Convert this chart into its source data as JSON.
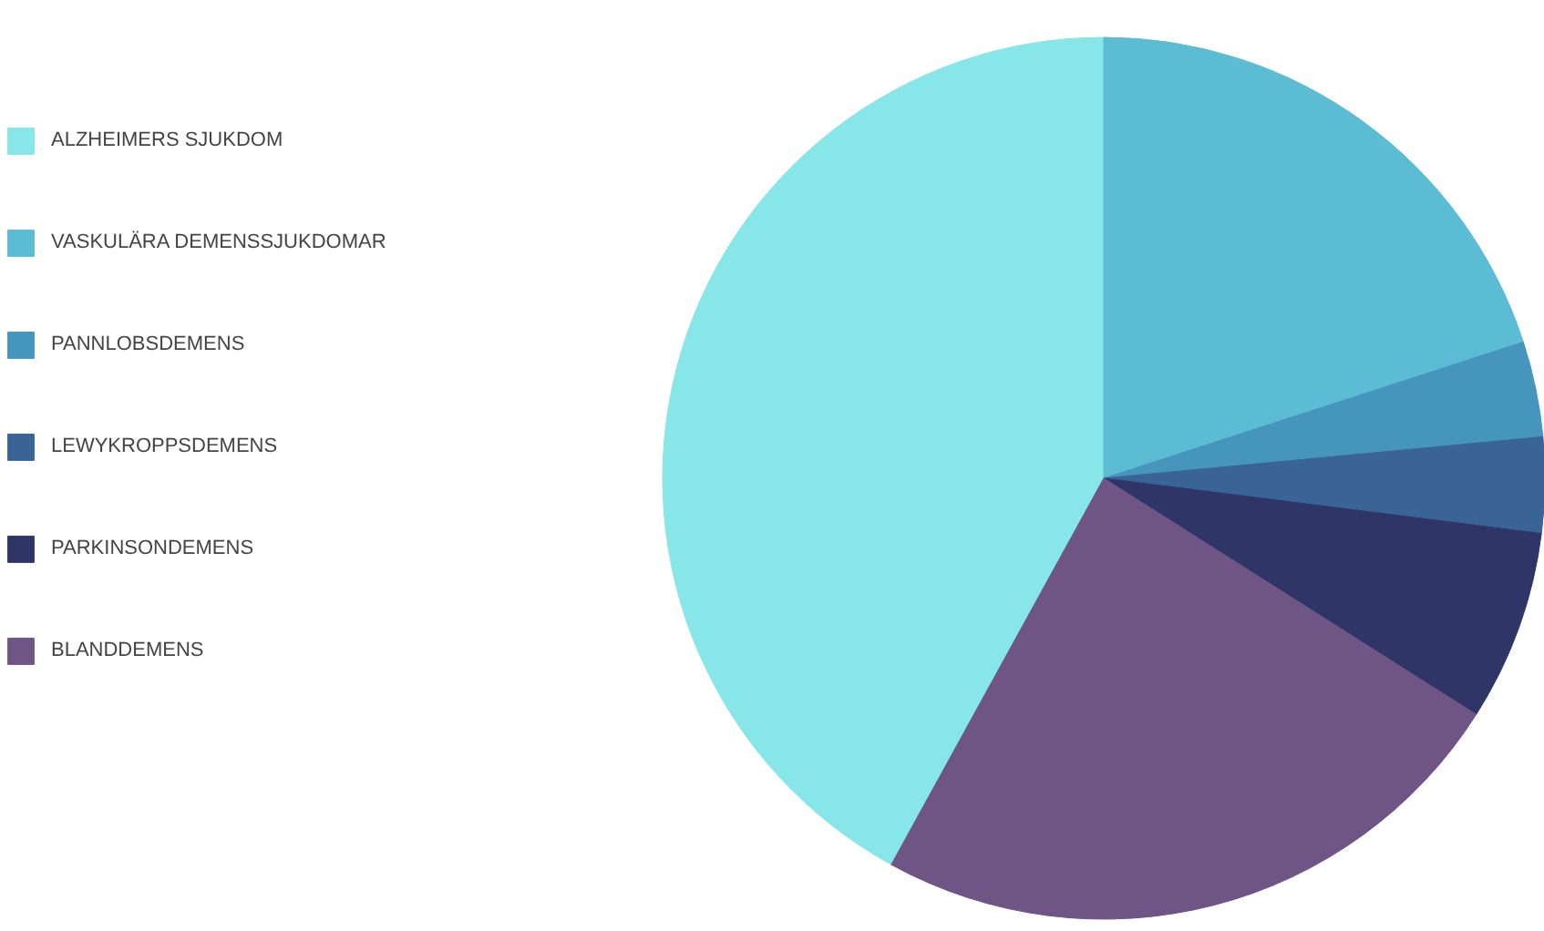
{
  "chart_data": {
    "type": "pie",
    "categories": [
      "ALZHEIMERS SJUKDOM",
      "VASKULÄRA DEMENSSJUKDOMAR",
      "PANNLOBSDEMENS",
      "LEWYKROPPSDEMENS",
      "PARKINSONDEMENS",
      "BLANDDEMENS"
    ],
    "values": [
      42,
      20,
      3.5,
      3.5,
      7,
      24
    ],
    "colors": [
      "#86e6e8",
      "#5bbcd4",
      "#4595bd",
      "#3a6496",
      "#2f3667",
      "#6e5585"
    ],
    "legend": "left"
  }
}
